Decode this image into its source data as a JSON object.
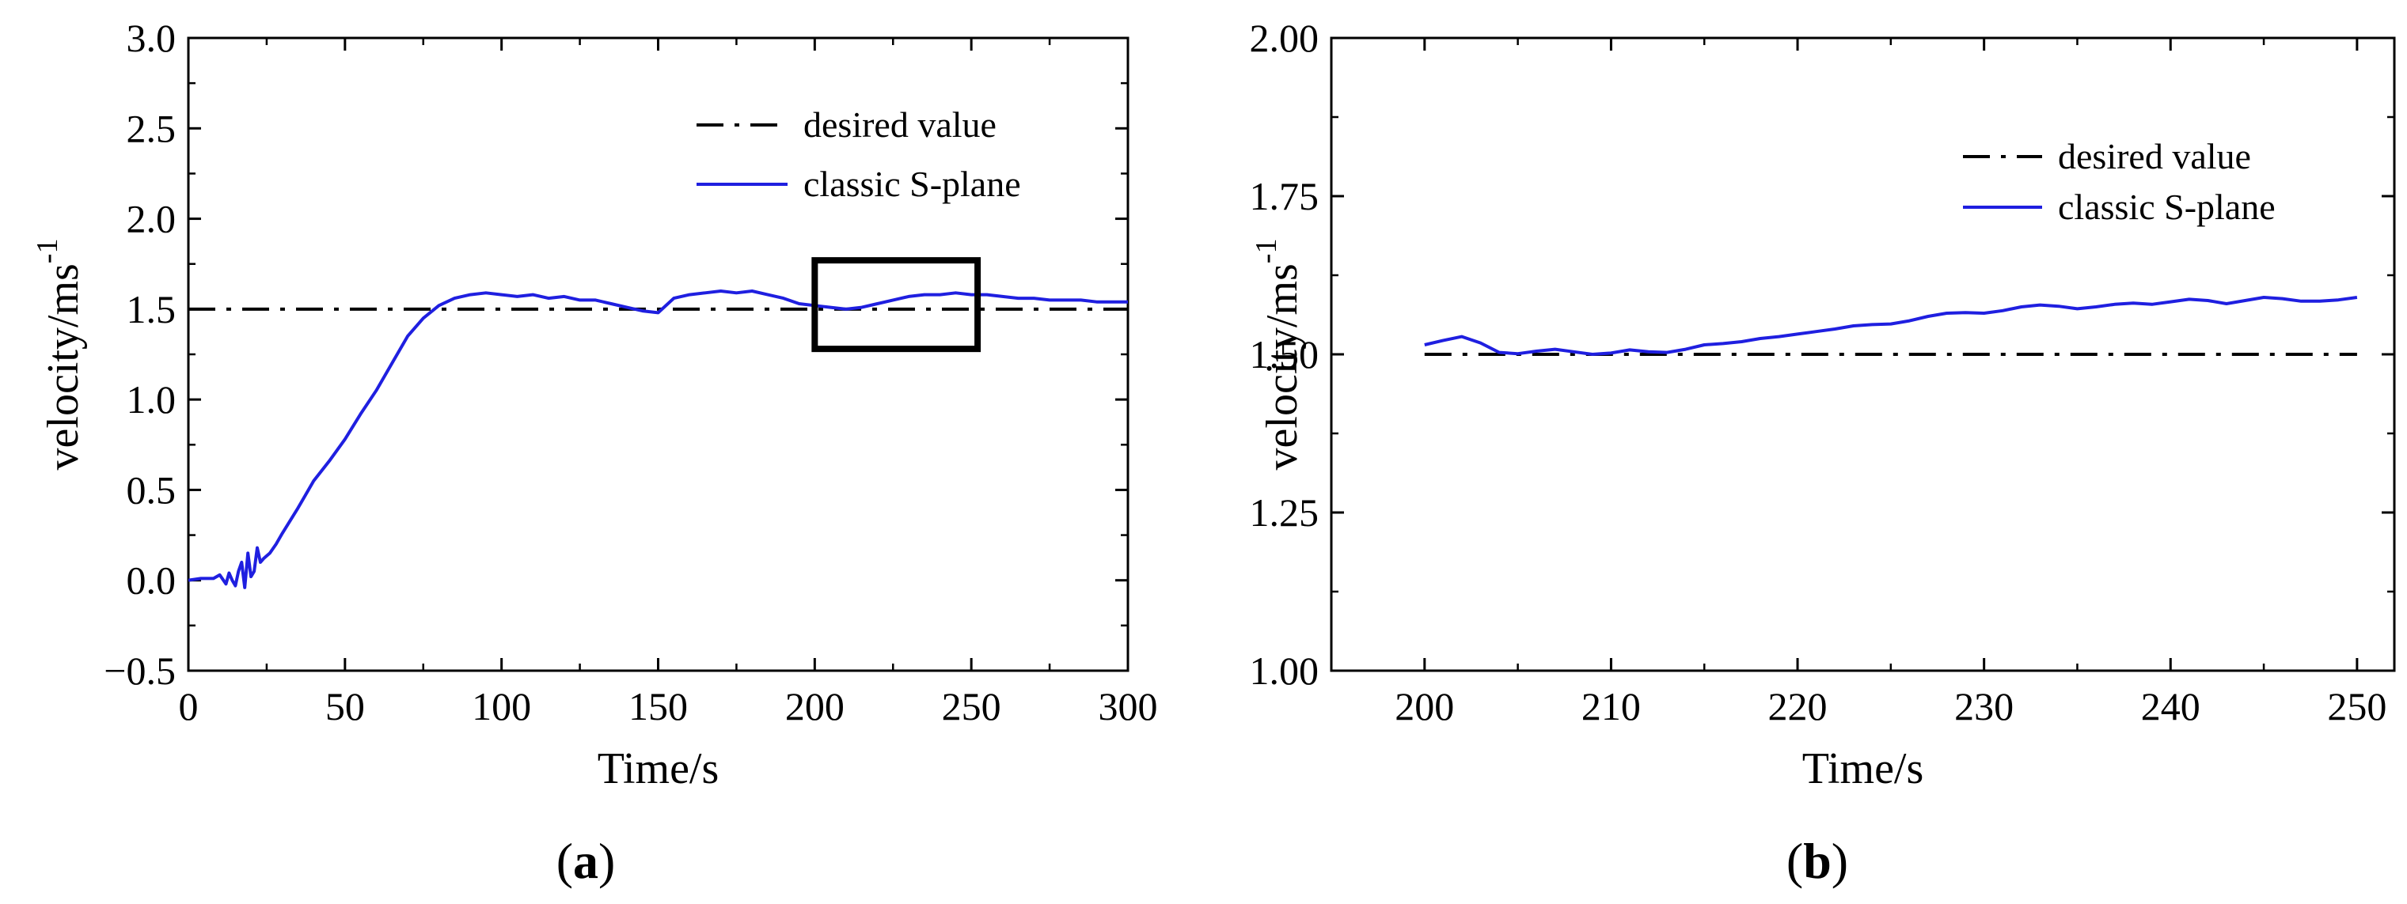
{
  "chart_data": [
    {
      "panel": "a",
      "panel_label": "(a)",
      "panel_label_parts": [
        "(",
        "a",
        ")"
      ],
      "type": "line",
      "xlabel": "Time/s",
      "ylabel": "velocity/ms",
      "ylabel_superscript": "-1",
      "xlim": [
        0,
        300
      ],
      "ylim": [
        -0.5,
        3.0
      ],
      "x_ticks": [
        0,
        50,
        100,
        150,
        200,
        250,
        300
      ],
      "x_tick_labels": [
        "0",
        "50",
        "100",
        "150",
        "200",
        "250",
        "300"
      ],
      "y_ticks": [
        -0.5,
        0.0,
        0.5,
        1.0,
        1.5,
        2.0,
        2.5,
        3.0
      ],
      "y_tick_labels": [
        "−0.5",
        "0.0",
        "0.5",
        "1.0",
        "1.5",
        "2.0",
        "2.5",
        "3.0"
      ],
      "legend": {
        "placement": "top-right",
        "entries": [
          "desired value",
          "classic S-plane"
        ]
      },
      "zoom_box": {
        "x": [
          200,
          252
        ],
        "y": [
          1.28,
          1.77
        ]
      },
      "series": [
        {
          "name": "desired value",
          "style": "dash-dot",
          "color": "#000000",
          "x": [
            0,
            300
          ],
          "y": [
            1.5,
            1.5
          ]
        },
        {
          "name": "classic S-plane",
          "style": "solid",
          "color": "#1f1fe0",
          "x": [
            0,
            4,
            8,
            10,
            12,
            13,
            14,
            15,
            16,
            17,
            18,
            19,
            20,
            21,
            22,
            23,
            24,
            26,
            28,
            30,
            35,
            40,
            45,
            50,
            55,
            60,
            65,
            70,
            75,
            80,
            85,
            90,
            95,
            100,
            105,
            110,
            115,
            120,
            125,
            130,
            135,
            140,
            145,
            150,
            155,
            160,
            165,
            170,
            175,
            180,
            185,
            190,
            195,
            200,
            205,
            210,
            215,
            220,
            225,
            230,
            235,
            240,
            245,
            250,
            255,
            260,
            265,
            270,
            275,
            280,
            285,
            290,
            295,
            300
          ],
          "y": [
            0.0,
            0.01,
            0.01,
            0.03,
            -0.02,
            0.04,
            0.0,
            -0.03,
            0.05,
            0.1,
            -0.04,
            0.15,
            0.02,
            0.05,
            0.18,
            0.1,
            0.12,
            0.15,
            0.2,
            0.26,
            0.4,
            0.55,
            0.66,
            0.78,
            0.92,
            1.05,
            1.2,
            1.35,
            1.45,
            1.52,
            1.56,
            1.58,
            1.59,
            1.58,
            1.57,
            1.58,
            1.56,
            1.57,
            1.55,
            1.55,
            1.53,
            1.51,
            1.49,
            1.48,
            1.56,
            1.58,
            1.59,
            1.6,
            1.59,
            1.6,
            1.58,
            1.56,
            1.53,
            1.52,
            1.51,
            1.5,
            1.51,
            1.53,
            1.55,
            1.57,
            1.58,
            1.58,
            1.59,
            1.58,
            1.58,
            1.57,
            1.56,
            1.56,
            1.55,
            1.55,
            1.55,
            1.54,
            1.54,
            1.54
          ]
        }
      ]
    },
    {
      "panel": "b",
      "panel_label": "(b)",
      "panel_label_parts": [
        "(",
        "b",
        ")"
      ],
      "type": "line",
      "xlabel": "Time/s",
      "ylabel": "velocity/ms",
      "ylabel_superscript": "-1",
      "xlim": [
        195,
        252
      ],
      "ylim": [
        1.0,
        2.0
      ],
      "x_ticks": [
        200,
        210,
        220,
        230,
        240,
        250
      ],
      "x_tick_labels": [
        "200",
        "210",
        "220",
        "230",
        "240",
        "250"
      ],
      "y_ticks": [
        1.0,
        1.25,
        1.5,
        1.75,
        2.0
      ],
      "y_tick_labels": [
        "1.00",
        "1.25",
        "1.50",
        "1.75",
        "2.00"
      ],
      "legend": {
        "placement": "top-right",
        "entries": [
          "desired value",
          "classic S-plane"
        ]
      },
      "series": [
        {
          "name": "desired value",
          "style": "dash-dot",
          "color": "#000000",
          "x": [
            200,
            250
          ],
          "y": [
            1.5,
            1.5
          ]
        },
        {
          "name": "classic S-plane",
          "style": "solid",
          "color": "#1f1fe0",
          "x": [
            200,
            201,
            202,
            203,
            204,
            205,
            206,
            207,
            208,
            209,
            210,
            211,
            212,
            213,
            214,
            215,
            216,
            217,
            218,
            219,
            220,
            221,
            222,
            223,
            224,
            225,
            226,
            227,
            228,
            229,
            230,
            231,
            232,
            233,
            234,
            235,
            236,
            237,
            238,
            239,
            240,
            241,
            242,
            243,
            244,
            245,
            246,
            247,
            248,
            249,
            250
          ],
          "y": [
            1.515,
            1.522,
            1.528,
            1.518,
            1.503,
            1.501,
            1.505,
            1.508,
            1.504,
            1.5,
            1.502,
            1.507,
            1.504,
            1.503,
            1.508,
            1.515,
            1.517,
            1.52,
            1.525,
            1.528,
            1.532,
            1.536,
            1.54,
            1.545,
            1.547,
            1.548,
            1.553,
            1.56,
            1.565,
            1.566,
            1.565,
            1.569,
            1.575,
            1.578,
            1.576,
            1.572,
            1.575,
            1.579,
            1.581,
            1.579,
            1.583,
            1.587,
            1.585,
            1.58,
            1.585,
            1.59,
            1.588,
            1.584,
            1.584,
            1.586,
            1.59
          ]
        }
      ]
    }
  ]
}
